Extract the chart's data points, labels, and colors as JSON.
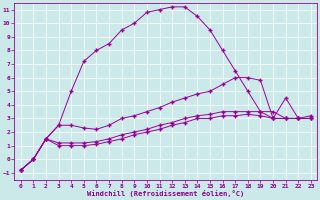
{
  "xlabel": "Windchill (Refroidissement éolien,°C)",
  "background_color": "#cce9e9",
  "grid_color": "#ffffff",
  "line_color": "#990099",
  "xlim": [
    -0.5,
    23.5
  ],
  "ylim": [
    -1.5,
    11.5
  ],
  "xticks": [
    0,
    1,
    2,
    3,
    4,
    5,
    6,
    7,
    8,
    9,
    10,
    11,
    12,
    13,
    14,
    15,
    16,
    17,
    18,
    19,
    20,
    21,
    22,
    23
  ],
  "yticks": [
    -1,
    0,
    1,
    2,
    3,
    4,
    5,
    6,
    7,
    8,
    9,
    10,
    11
  ],
  "line1_x": [
    0,
    1,
    2,
    3,
    4,
    5,
    6,
    7,
    8,
    9,
    10,
    11,
    12,
    13,
    14,
    15,
    16,
    17,
    18,
    19,
    20,
    21,
    22,
    23
  ],
  "line1_y": [
    -0.8,
    0.0,
    1.5,
    2.5,
    5.0,
    7.2,
    8.0,
    8.5,
    9.5,
    10.0,
    10.8,
    11.0,
    11.2,
    11.2,
    10.5,
    9.5,
    8.0,
    6.5,
    5.0,
    3.5,
    3.5,
    3.0,
    3.0,
    3.0
  ],
  "line2_x": [
    0,
    1,
    2,
    3,
    4,
    5,
    6,
    7,
    8,
    9,
    10,
    11,
    12,
    13,
    14,
    15,
    16,
    17,
    18,
    19,
    20,
    21,
    22,
    23
  ],
  "line2_y": [
    -0.8,
    0.0,
    1.5,
    2.5,
    2.5,
    2.3,
    2.2,
    2.5,
    3.0,
    3.2,
    3.5,
    3.8,
    4.2,
    4.5,
    4.8,
    5.0,
    5.5,
    6.0,
    6.0,
    5.8,
    3.0,
    3.0,
    3.0,
    3.0
  ],
  "line3_x": [
    0,
    1,
    2,
    3,
    4,
    5,
    6,
    7,
    8,
    9,
    10,
    11,
    12,
    13,
    14,
    15,
    16,
    17,
    18,
    19,
    20,
    21,
    22,
    23
  ],
  "line3_y": [
    -0.8,
    0.0,
    1.5,
    1.2,
    1.2,
    1.2,
    1.3,
    1.5,
    1.8,
    2.0,
    2.2,
    2.5,
    2.7,
    3.0,
    3.2,
    3.3,
    3.5,
    3.5,
    3.5,
    3.5,
    3.0,
    4.5,
    3.0,
    3.2
  ],
  "line4_x": [
    0,
    1,
    2,
    3,
    4,
    5,
    6,
    7,
    8,
    9,
    10,
    11,
    12,
    13,
    14,
    15,
    16,
    17,
    18,
    19,
    20,
    21,
    22,
    23
  ],
  "line4_y": [
    -0.8,
    0.0,
    1.5,
    1.0,
    1.0,
    1.0,
    1.1,
    1.3,
    1.5,
    1.8,
    2.0,
    2.2,
    2.5,
    2.7,
    3.0,
    3.0,
    3.2,
    3.2,
    3.3,
    3.2,
    3.0,
    3.0,
    3.0,
    3.0
  ],
  "font_color": "#880088"
}
